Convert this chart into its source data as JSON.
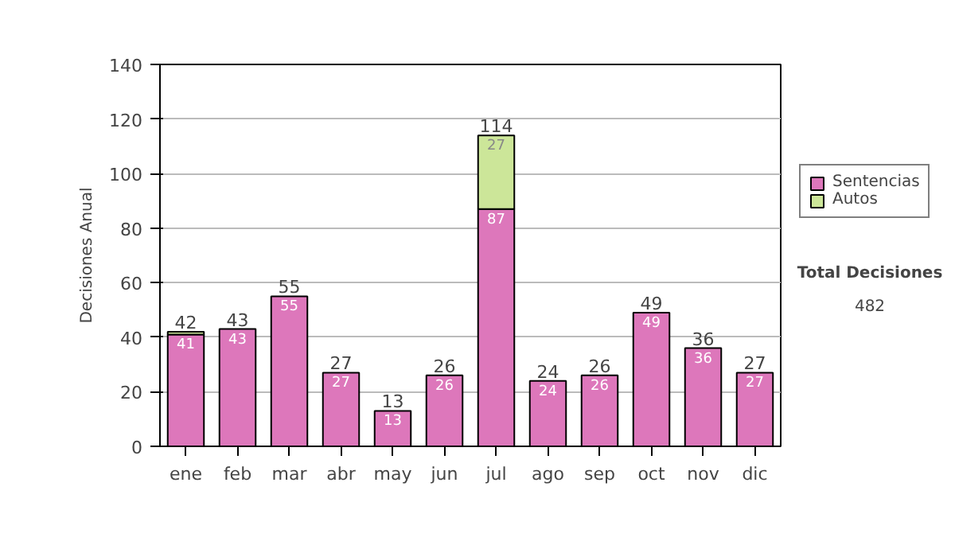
{
  "chart_data": {
    "type": "bar",
    "stacked": true,
    "ylabel": "Decisiones Anual",
    "categories": [
      "ene",
      "feb",
      "mar",
      "abr",
      "may",
      "jun",
      "jul",
      "ago",
      "sep",
      "oct",
      "nov",
      "dic"
    ],
    "series": [
      {
        "name": "Sentencias",
        "color": "#dd77bb",
        "values": [
          41,
          43,
          55,
          27,
          13,
          26,
          87,
          24,
          26,
          49,
          36,
          27
        ],
        "value_labels": [
          "41",
          "43",
          "55",
          "27",
          "13",
          "26",
          "87",
          "24",
          "26",
          "49",
          "36",
          "27"
        ]
      },
      {
        "name": "Autos",
        "color": "#cce699",
        "values": [
          1,
          0,
          0,
          0,
          0,
          0,
          27,
          0,
          0,
          0,
          0,
          0
        ],
        "value_labels": [
          null,
          null,
          null,
          null,
          null,
          null,
          "27",
          null,
          null,
          null,
          null,
          null
        ]
      }
    ],
    "totals": [
      "42",
      "43",
      "55",
      "27",
      "13",
      "26",
      "114",
      "24",
      "26",
      "49",
      "36",
      "27"
    ],
    "ylim": [
      0,
      140
    ],
    "yticks": [
      0,
      20,
      40,
      60,
      80,
      100,
      120,
      140
    ],
    "grid": "y",
    "legend": "right",
    "annotations": [
      "Total Decisiones",
      "482"
    ]
  }
}
